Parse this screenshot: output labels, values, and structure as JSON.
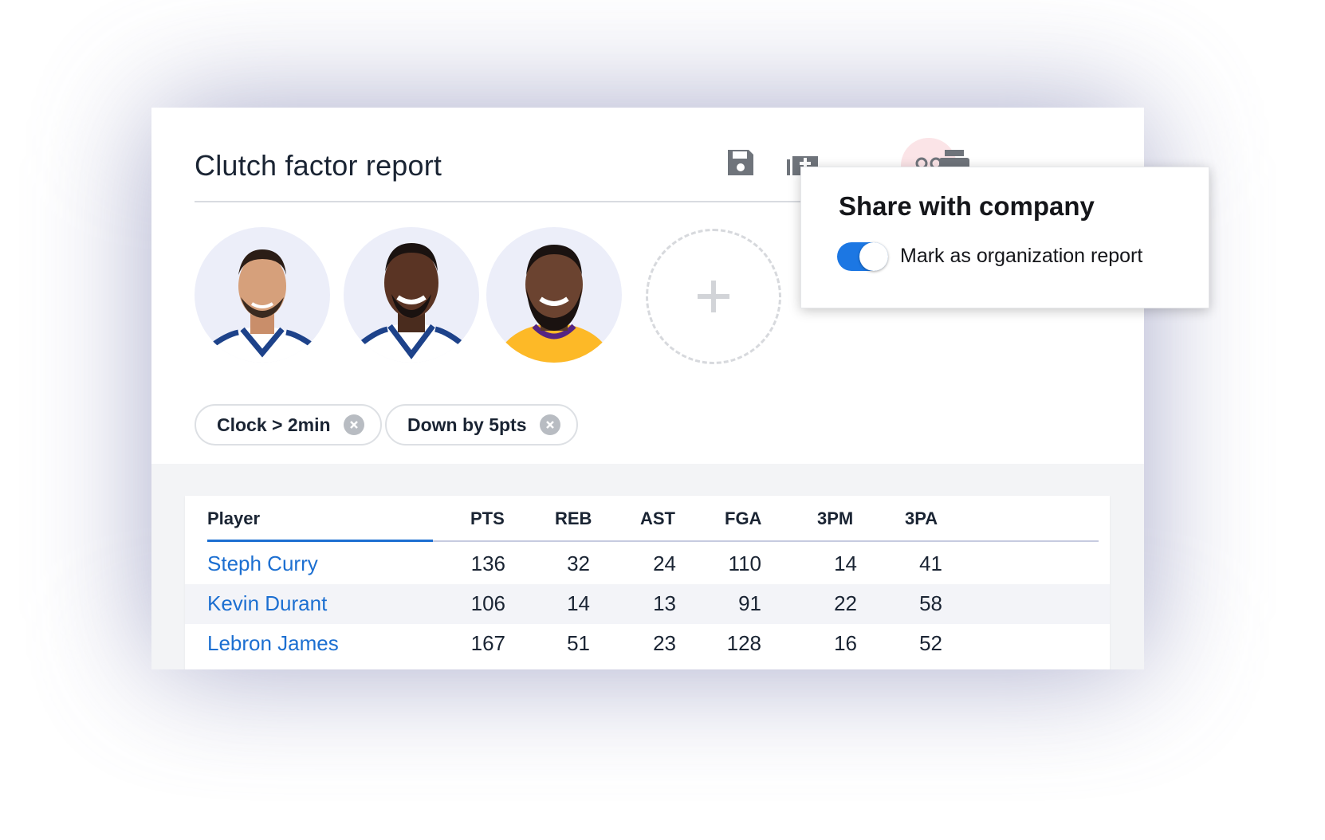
{
  "report": {
    "title": "Clutch factor report"
  },
  "toolbar": {
    "icons": [
      "save-icon",
      "add-to-collection-icon",
      "share-people-icon",
      "print-icon"
    ]
  },
  "players": [
    {
      "name": "Steph Curry",
      "jersey_color": "#ffffff",
      "trim_color": "#1d428a"
    },
    {
      "name": "Kevin Durant",
      "jersey_color": "#ffffff",
      "trim_color": "#1d428a"
    },
    {
      "name": "Lebron James",
      "jersey_color": "#fdb927",
      "trim_color": "#552583"
    }
  ],
  "add_player": {
    "icon": "plus-icon"
  },
  "filters": [
    {
      "label": "Clock > 2min"
    },
    {
      "label": "Down by 5pts"
    }
  ],
  "table": {
    "columns": [
      "Player",
      "PTS",
      "REB",
      "AST",
      "FGA",
      "3PM",
      "3PA"
    ],
    "rows": [
      {
        "player": "Steph Curry",
        "pts": "136",
        "reb": "32",
        "ast": "24",
        "fga": "110",
        "tpm": "14",
        "tpa": "41"
      },
      {
        "player": "Kevin Durant",
        "pts": "106",
        "reb": "14",
        "ast": "13",
        "fga": "91",
        "tpm": "22",
        "tpa": "58"
      },
      {
        "player": "Lebron James",
        "pts": "167",
        "reb": "51",
        "ast": "23",
        "fga": "128",
        "tpm": "16",
        "tpa": "52"
      }
    ]
  },
  "share_popover": {
    "title": "Share with company",
    "toggle_label": "Mark as organization report",
    "toggle_on": true
  },
  "colors": {
    "accent": "#1c77e3",
    "link": "#1c6fd1",
    "share_button_bg": "#fbe4e7"
  }
}
